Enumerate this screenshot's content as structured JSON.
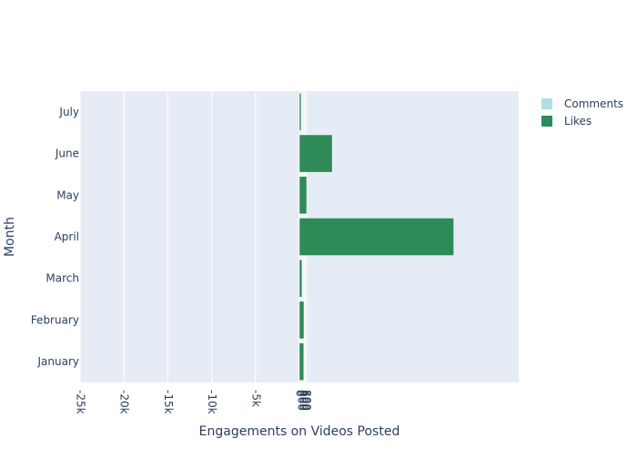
{
  "chart_data": {
    "type": "hbar",
    "categories": [
      "January",
      "February",
      "March",
      "April",
      "May",
      "June",
      "July"
    ],
    "series": [
      {
        "name": "Comments",
        "color": "#b0e0e6",
        "values": [
          20,
          20,
          10,
          150,
          30,
          80,
          10
        ]
      },
      {
        "name": "Likes",
        "color": "#2e8b57",
        "values": [
          500,
          520,
          300,
          17600,
          830,
          3750,
          200
        ]
      }
    ],
    "xlim": [
      -25000,
      25000
    ],
    "xticks": [
      {
        "value": -25000,
        "label": "-25k"
      },
      {
        "value": -20000,
        "label": "-20k"
      },
      {
        "value": -15000,
        "label": "-15k"
      },
      {
        "value": -10000,
        "label": "-10k"
      },
      {
        "value": -5000,
        "label": "-5k"
      },
      0,
      200,
      400,
      600,
      800
    ],
    "xlabel": "Engagements on Videos Posted",
    "ylabel": "Month",
    "grid": true,
    "legend": "top-right"
  }
}
